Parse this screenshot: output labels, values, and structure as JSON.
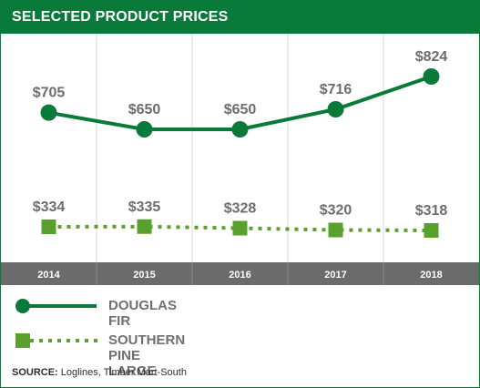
{
  "header": {
    "title": "SELECTED PRODUCT PRICES"
  },
  "chart_data": {
    "type": "line",
    "categories": [
      "2014",
      "2015",
      "2016",
      "2017",
      "2018"
    ],
    "series": [
      {
        "name": "DOUGLAS FIR",
        "values": [
          705,
          650,
          650,
          716,
          824
        ],
        "labels": [
          "$705",
          "$650",
          "$650",
          "$716",
          "$824"
        ],
        "color": "#0a7a3a",
        "style": "solid",
        "marker": "circle"
      },
      {
        "name": "SOUTHERN PINE LARGE",
        "values": [
          334,
          335,
          328,
          320,
          318
        ],
        "labels": [
          "$334",
          "$335",
          "$328",
          "$320",
          "$318"
        ],
        "color": "#5aa02c",
        "style": "dotted",
        "marker": "square"
      }
    ],
    "grid": "vertical",
    "legend": "bottom"
  },
  "source": {
    "label": "SOURCE:",
    "text": "Loglines, Timber Mart-South"
  }
}
